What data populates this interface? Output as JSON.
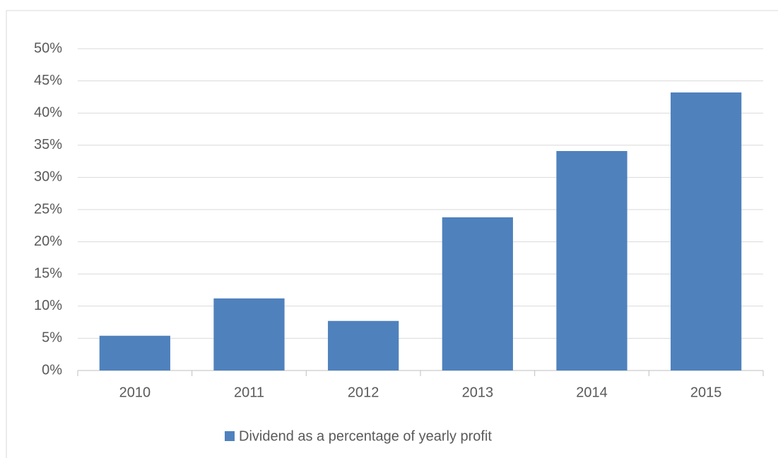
{
  "chart_data": {
    "type": "bar",
    "categories": [
      "2010",
      "2011",
      "2012",
      "2013",
      "2014",
      "2015"
    ],
    "series": [
      {
        "name": "Dividend as a percentage of yearly profit",
        "color": "#4f81bd",
        "values": [
          5.4,
          11.2,
          7.7,
          23.8,
          34.1,
          43.2
        ]
      }
    ],
    "ylim": [
      0,
      50
    ],
    "yticks": [
      {
        "value": 0,
        "label": "0%"
      },
      {
        "value": 5,
        "label": "5%"
      },
      {
        "value": 10,
        "label": "10%"
      },
      {
        "value": 15,
        "label": "15%"
      },
      {
        "value": 20,
        "label": "20%"
      },
      {
        "value": 25,
        "label": "25%"
      },
      {
        "value": 30,
        "label": "30%"
      },
      {
        "value": 35,
        "label": "35%"
      },
      {
        "value": 40,
        "label": "40%"
      },
      {
        "value": 45,
        "label": "45%"
      },
      {
        "value": 50,
        "label": "50%"
      }
    ],
    "grid": true,
    "legend": "bottom"
  }
}
